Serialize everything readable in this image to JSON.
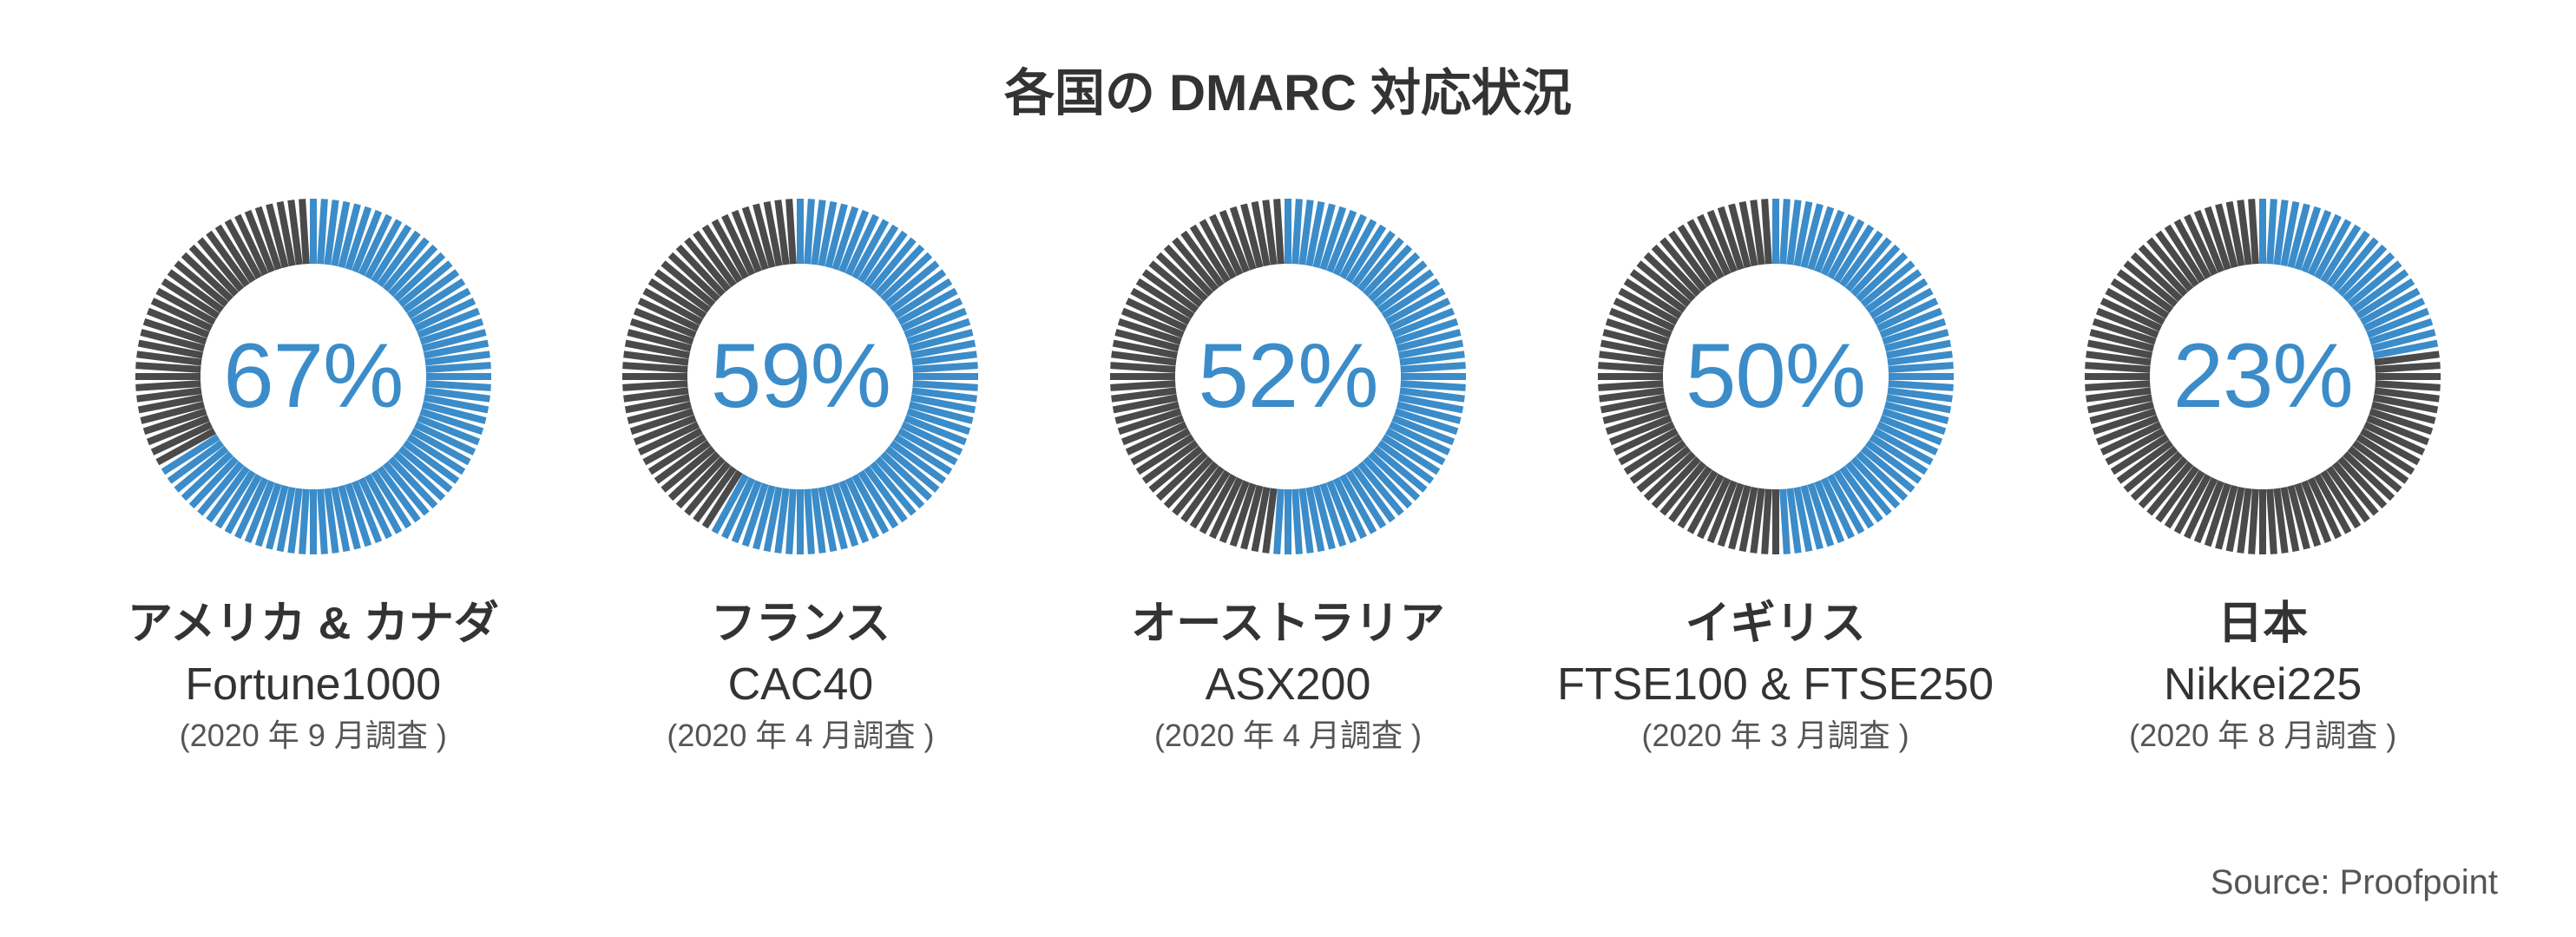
{
  "title": "各国の DMARC 対応状況",
  "title_fontsize": 58,
  "title_color": "#333333",
  "source_text": "Source: Proofpoint",
  "source_fontsize": 40,
  "source_color": "#555555",
  "background_color": "#ffffff",
  "chart": {
    "type": "radial-tick-gauge",
    "tick_count": 100,
    "tick_width_outer": 8,
    "gauge_outer_radius": 205,
    "gauge_inner_radius": 130,
    "svg_size": 440,
    "active_color": "#3b8cc9",
    "inactive_color": "#4a4a4a",
    "center_text_color": "#3b8cc9",
    "center_text_fontsize": 105,
    "label_line1_fontsize": 52,
    "label_line2_fontsize": 52,
    "label_line3_fontsize": 36,
    "label_color": "#333333",
    "label_line3_color": "#555555"
  },
  "gauges": [
    {
      "percent": 67,
      "center_label": "67%",
      "line1": "アメリカ & カナダ",
      "line2": "Fortune1000",
      "line3": "(2020 年 9 月調査 )"
    },
    {
      "percent": 59,
      "center_label": "59%",
      "line1": "フランス",
      "line2": "CAC40",
      "line3": "(2020 年 4 月調査 )"
    },
    {
      "percent": 52,
      "center_label": "52%",
      "line1": "オーストラリア",
      "line2": "ASX200",
      "line3": "(2020 年 4 月調査 )"
    },
    {
      "percent": 50,
      "center_label": "50%",
      "line1": "イギリス",
      "line2": "FTSE100 & FTSE250",
      "line3": "(2020 年 3 月調査 )"
    },
    {
      "percent": 23,
      "center_label": "23%",
      "line1": "日本",
      "line2": "Nikkei225",
      "line3": "(2020 年 8 月調査 )"
    }
  ]
}
